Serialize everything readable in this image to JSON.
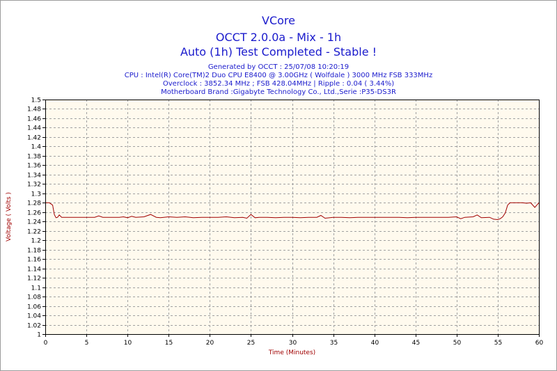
{
  "chart_data": {
    "type": "line",
    "title": "VCore",
    "subtitle1": "OCCT 2.0.0a - Mix - 1h",
    "subtitle2": "Auto (1h) Test Completed - Stable !",
    "info_lines": [
      "Generated by OCCT : 25/07/08 10:20:19",
      "CPU : Intel(R) Core(TM)2 Duo CPU E8400 @ 3.00GHz ( Wolfdale ) 3000 MHz FSB 333MHz",
      "Overclock : 3852.34 MHz ; FSB 428.04MHz | Ripple : 0.04 ( 3.44%)",
      "Motherboard Brand :Gigabyte Technology Co., Ltd.,Serie :P35-DS3R"
    ],
    "xlabel": "Time (Minutes)",
    "ylabel": "Voltage ( Volts )",
    "xlim": [
      0,
      60
    ],
    "ylim": [
      1.0,
      1.5
    ],
    "xticks": [
      0,
      5,
      10,
      15,
      20,
      25,
      30,
      35,
      40,
      45,
      50,
      55,
      60
    ],
    "yticks": [
      1.5,
      1.48,
      1.46,
      1.44,
      1.42,
      1.4,
      1.38,
      1.36,
      1.34,
      1.32,
      1.3,
      1.28,
      1.26,
      1.24,
      1.22,
      1.2,
      1.18,
      1.16,
      1.14,
      1.12,
      1.1,
      1.08,
      1.06,
      1.04,
      1.02,
      1
    ],
    "grid": true,
    "colors": {
      "line": "#a00000",
      "plot_bg": "#fffaee",
      "title": "#1a1acc",
      "axis_label": "#a00000"
    },
    "series": [
      {
        "x": [
          0,
          0.5,
          0.9,
          1.1,
          1.3,
          1.5,
          1.7,
          2,
          3,
          4,
          5,
          6,
          6.5,
          7,
          8,
          9,
          9.5,
          10,
          10.5,
          11,
          12,
          12.8,
          13.5,
          14,
          15,
          16,
          17,
          18,
          19,
          20,
          21,
          22,
          23,
          24,
          24.5,
          25,
          25.5,
          26,
          27,
          28,
          29,
          30,
          31,
          32,
          33,
          33.5,
          34,
          35,
          36,
          37,
          38,
          39,
          40,
          41,
          42,
          43,
          44,
          45,
          46,
          47,
          48,
          49,
          50,
          50.5,
          51,
          52,
          52.5,
          53,
          54,
          54.5,
          55,
          55.3,
          55.6,
          55.9,
          56.2,
          56.5,
          57,
          58,
          58.5,
          59,
          59.5,
          60
        ],
        "y": [
          1.28,
          1.28,
          1.275,
          1.255,
          1.248,
          1.249,
          1.254,
          1.249,
          1.249,
          1.249,
          1.249,
          1.249,
          1.252,
          1.249,
          1.249,
          1.249,
          1.25,
          1.248,
          1.251,
          1.249,
          1.25,
          1.255,
          1.249,
          1.248,
          1.25,
          1.249,
          1.25,
          1.248,
          1.249,
          1.249,
          1.249,
          1.25,
          1.248,
          1.249,
          1.247,
          1.255,
          1.248,
          1.249,
          1.249,
          1.248,
          1.249,
          1.249,
          1.248,
          1.249,
          1.249,
          1.253,
          1.247,
          1.249,
          1.249,
          1.248,
          1.249,
          1.249,
          1.249,
          1.249,
          1.249,
          1.249,
          1.248,
          1.249,
          1.249,
          1.249,
          1.249,
          1.249,
          1.25,
          1.246,
          1.249,
          1.25,
          1.254,
          1.248,
          1.249,
          1.245,
          1.244,
          1.246,
          1.25,
          1.258,
          1.275,
          1.28,
          1.28,
          1.28,
          1.279,
          1.28,
          1.27,
          1.28
        ]
      }
    ]
  }
}
